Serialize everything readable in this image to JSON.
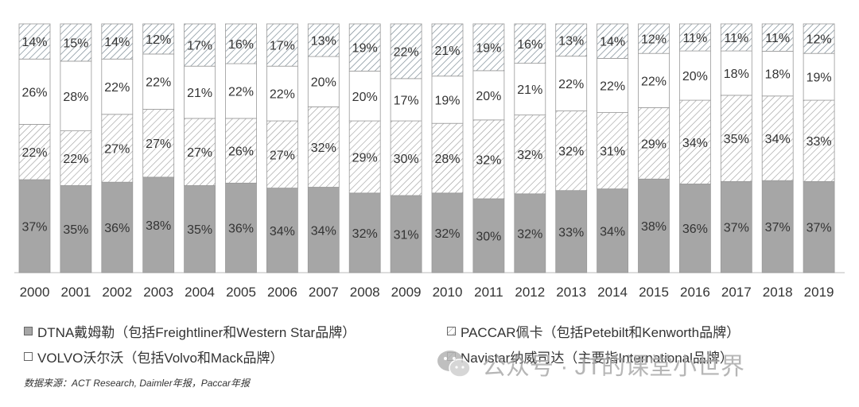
{
  "chart_data": {
    "type": "bar",
    "stacked": true,
    "percent_stacked": true,
    "categories": [
      "2000",
      "2001",
      "2002",
      "2003",
      "2004",
      "2005",
      "2006",
      "2007",
      "2008",
      "2009",
      "2010",
      "2011",
      "2012",
      "2013",
      "2014",
      "2015",
      "2016",
      "2017",
      "2018",
      "2019"
    ],
    "series": [
      {
        "name": "DTNA戴姆勒（包括Freightliner和Western Star品牌）",
        "values": [
          37,
          35,
          36,
          38,
          35,
          36,
          34,
          34,
          32,
          31,
          32,
          30,
          32,
          33,
          34,
          38,
          36,
          37,
          37,
          37
        ],
        "fill": "solid-gray"
      },
      {
        "name": "PACCAR佩卡（包括Petebilt和Kenworth品牌）",
        "values": [
          22,
          22,
          27,
          27,
          27,
          26,
          27,
          32,
          29,
          30,
          28,
          32,
          32,
          32,
          31,
          29,
          34,
          35,
          34,
          33
        ],
        "fill": "hatched"
      },
      {
        "name": "VOLVO沃尔沃（包括Volvo和Mack品牌）",
        "values": [
          26,
          28,
          22,
          22,
          21,
          22,
          22,
          20,
          20,
          17,
          19,
          20,
          21,
          22,
          22,
          22,
          20,
          18,
          18,
          19
        ],
        "fill": "white"
      },
      {
        "name": "Navistar纳威司达（主要指International品牌）",
        "values": [
          14,
          15,
          14,
          12,
          17,
          16,
          17,
          13,
          19,
          22,
          21,
          19,
          16,
          13,
          14,
          12,
          11,
          11,
          11,
          12
        ],
        "fill": "hatched-light"
      }
    ],
    "value_label_suffix": "%",
    "ylim": [
      0,
      100
    ],
    "grid": false,
    "legend_position": "bottom",
    "colors": {
      "dtna": "#a6a6a6",
      "hatch_line": "#888888",
      "border": "#999999",
      "text": "#333333"
    }
  },
  "legend": {
    "dtna": "DTNA戴姆勒（包括Freightliner和Western  Star品牌）",
    "paccar": "PACCAR佩卡（包括Petebilt和Kenworth品牌）",
    "volvo": "VOLVO沃尔沃（包括Volvo和Mack品牌）",
    "navistar": "Navistar纳威司达（主要指International品牌）"
  },
  "source": "数据来源：ACT Research, Daimler年报，Paccar年报",
  "watermark": "公众号 · JT的课堂小世界",
  "watermark_icon": "wechat-icon"
}
